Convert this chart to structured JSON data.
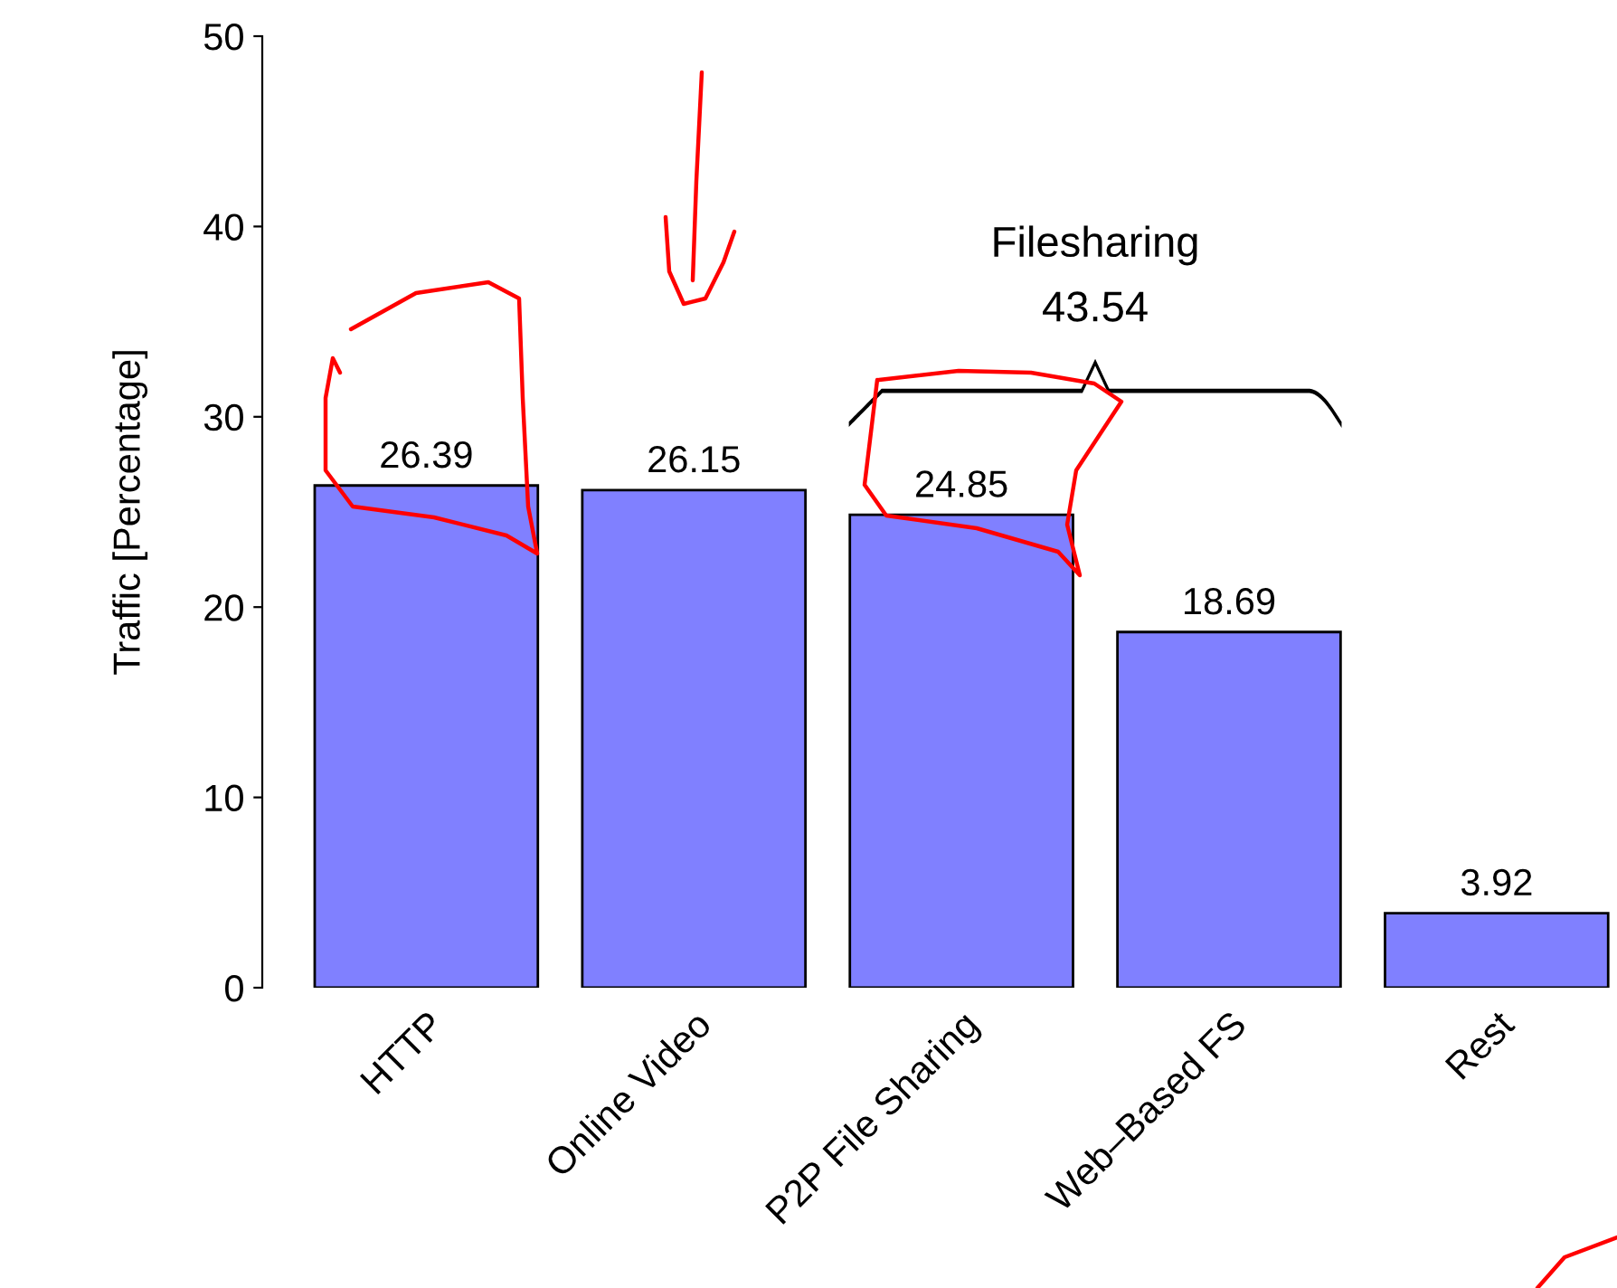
{
  "chart_data": {
    "type": "bar",
    "ylabel": "Traffic [Percentage]",
    "categories": [
      "HTTP",
      "Online Video",
      "P2P File Sharing",
      "Web–Based FS",
      "Rest"
    ],
    "values": [
      26.39,
      26.15,
      24.85,
      18.69,
      3.92
    ],
    "color": "#8080ff",
    "ylim": [
      0,
      50
    ],
    "yticks": [
      0,
      10,
      20,
      30,
      40,
      50
    ],
    "grid": false,
    "data_labels": true,
    "annotations": [
      "Filesharing",
      "43.54"
    ]
  }
}
